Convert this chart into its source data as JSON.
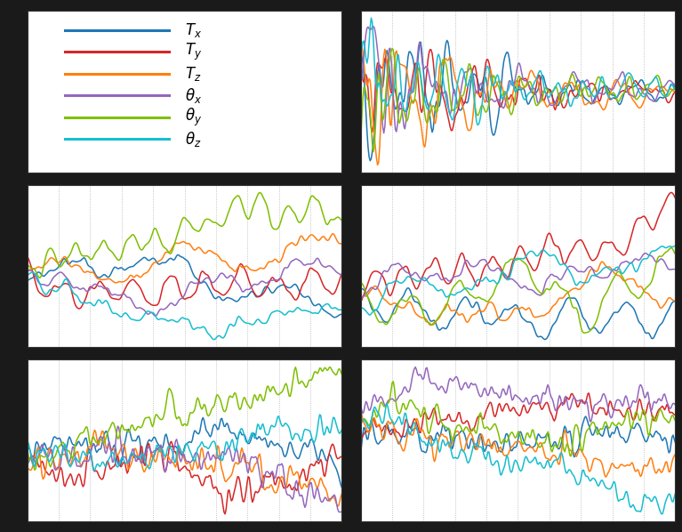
{
  "colors": [
    "#1f77b4",
    "#d62728",
    "#ff7f0e",
    "#9467bd",
    "#7fbf00",
    "#17becf"
  ],
  "labels": [
    "$T_x$",
    "$T_y$",
    "$T_z$",
    "$\\theta_x$",
    "$\\theta_y$",
    "$\\theta_z$"
  ],
  "n_points": 300,
  "fig_background": "#1a1a1a",
  "plot_background": "#ffffff",
  "grid_color": "#aaaaaa",
  "linewidth": 1.1,
  "legend_fontsize": 12
}
